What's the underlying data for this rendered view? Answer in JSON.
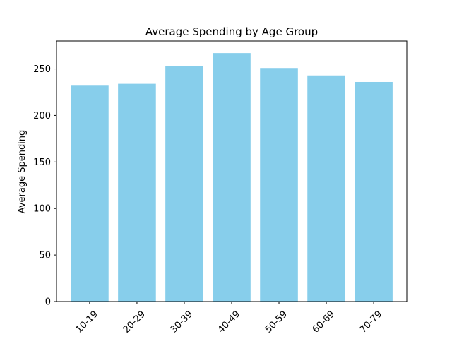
{
  "chart_data": {
    "type": "bar",
    "title": "Average Spending by Age Group",
    "xlabel": "",
    "ylabel": "Average Spending",
    "categories": [
      "10-19",
      "20-29",
      "30-39",
      "40-49",
      "50-59",
      "60-69",
      "70-79"
    ],
    "values": [
      232,
      234,
      253,
      267,
      251,
      243,
      236
    ],
    "ylim": [
      0,
      280
    ],
    "yticks": [
      0,
      50,
      100,
      150,
      200,
      250
    ],
    "bar_color": "#87ceeb",
    "grid": false,
    "legend": "none",
    "xtick_rotation": "45 degrees"
  }
}
